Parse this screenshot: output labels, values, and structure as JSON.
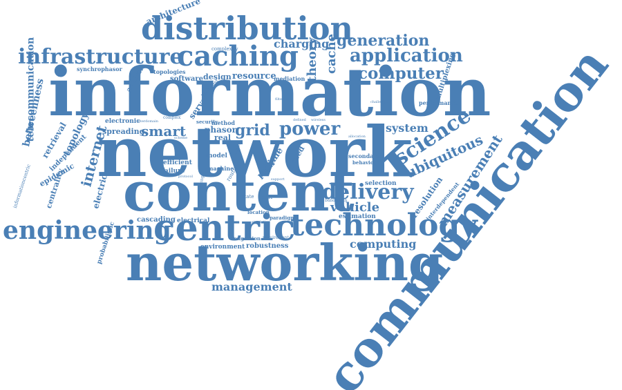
{
  "colors": {
    "word": "#4a7fb5"
  },
  "words": {
    "information": "information",
    "network": "network",
    "content": "content",
    "networking": "networking",
    "communication": "communication",
    "centric": "centric",
    "technology": "technology",
    "engineering": "engineering",
    "distribution": "distribution",
    "caching": "caching",
    "infrastructure": "infrastructure",
    "application": "application",
    "delivery": "delivery",
    "power": "power",
    "grid": "grid",
    "smart": "smart",
    "science": "science",
    "computer": "computer",
    "measurement": "measurement",
    "ubiquitous": "ubiquitous",
    "generation": "generation",
    "management": "management",
    "internet": "internet",
    "system": "system",
    "computing": "computing",
    "vehicle": "vehicle",
    "telecommunication": "telecommunication",
    "betweenness": "betweenness",
    "architecture": "architecture",
    "charging": "charging",
    "theory": "theory",
    "cache": "cache",
    "resource": "resource",
    "design": "design",
    "software": "software",
    "topologies": "topologies",
    "analysis": "analysis",
    "synchrophasor": "synchrophasor",
    "complexity": "complexity",
    "mediation": "mediation",
    "multiplexing": "multiplexing",
    "performance": "performance",
    "retrieval": "retrieval",
    "topology": "topology",
    "independent": "independent",
    "epidemic": "epidemic",
    "informationcentric": "informationcentric",
    "centrality": "centrality",
    "electric": "electric",
    "spreading": "spreading",
    "electronic": "electronic",
    "efficient": "efficient",
    "failure": "failure",
    "model": "model",
    "machine": "machine",
    "phasor": "phasor",
    "real": "real",
    "server": "server",
    "method": "method",
    "path": "path",
    "time": "time",
    "cascading": "cascading",
    "electrical": "electrical",
    "robustness": "robustness",
    "environment": "environment",
    "probabilistic": "probabilistic",
    "location": "location",
    "paradigm": "paradigm",
    "estimation": "estimation",
    "selection": "selection",
    "resolution": "resolution",
    "interdependent": "interdependent",
    "secondary": "secondary",
    "bandwidth": "bandwidth",
    "behavior": "behavior",
    "security": "security",
    "congestion": "congestion",
    "requirement": "requirement",
    "routing": "routing",
    "processing": "processing",
    "state": "state",
    "unit": "unit",
    "based": "based",
    "multicast": "multicast",
    "service": "service",
    "complex": "complex",
    "filtering": "filtering",
    "defined": "defined",
    "wireless": "wireless",
    "protocol": "protocol",
    "support": "support",
    "allocation": "allocation",
    "challenge": "challenge",
    "scheme": "scheme",
    "simulation": "simulation",
    "interdomain": "interdomain"
  }
}
